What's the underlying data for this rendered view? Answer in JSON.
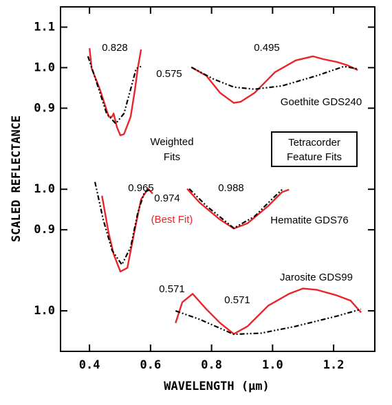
{
  "chart_data": {
    "type": "line",
    "xlabel": "WAVELENGTH (µm)",
    "ylabel": "SCALED REFLECTANCE",
    "xlim": [
      0.305,
      1.335
    ],
    "xticks": [
      0.4,
      0.6,
      0.8,
      {
        "value": 1.0,
        "label": "1.0"
      },
      1.2
    ],
    "ylim": [
      0.3,
      1.15
    ],
    "yticks": [
      1.1,
      {
        "value": 1.0,
        "label": "1.0"
      },
      0.9,
      {
        "value": 0.7,
        "label": "1.0"
      },
      {
        "value": 0.6,
        "label": "0.9"
      },
      {
        "value": 0.4,
        "label": "1.0"
      }
    ],
    "series": [
      {
        "color": "#e8262a",
        "dash": false,
        "x": [
          0.4,
          0.407,
          0.434,
          0.463,
          0.474,
          0.479,
          0.49,
          0.501,
          0.513,
          0.535,
          0.549,
          0.558,
          0.569
        ],
        "values": [
          1.048,
          0.998,
          0.947,
          0.879,
          0.879,
          0.887,
          0.853,
          0.833,
          0.836,
          0.879,
          0.947,
          0.998,
          1.045
        ]
      },
      {
        "color": "#000000",
        "dash": true,
        "x": [
          0.395,
          0.423,
          0.456,
          0.486,
          0.513,
          0.535,
          0.553,
          0.569
        ],
        "values": [
          1.028,
          0.964,
          0.887,
          0.862,
          0.887,
          0.947,
          0.998,
          1.003
        ]
      },
      {
        "color": "#e8262a",
        "dash": false,
        "x": [
          0.734,
          0.783,
          0.828,
          0.873,
          0.896,
          0.941,
          1.008,
          1.076,
          1.132,
          1.166,
          1.211,
          1.245,
          1.279
        ],
        "values": [
          1.001,
          0.98,
          0.938,
          0.913,
          0.916,
          0.938,
          0.989,
          1.018,
          1.028,
          1.021,
          1.014,
          1.006,
          0.994
        ]
      },
      {
        "color": "#000000",
        "dash": true,
        "x": [
          0.734,
          0.806,
          0.873,
          0.941,
          1.031,
          1.144,
          1.234,
          1.279
        ],
        "values": [
          1.001,
          0.972,
          0.952,
          0.947,
          0.955,
          0.98,
          1.003,
          0.997
        ]
      },
      {
        "color": "#e8262a",
        "dash": false,
        "x": [
          0.441,
          0.463,
          0.479,
          0.501,
          0.524,
          0.546,
          0.569,
          0.592,
          0.607
        ],
        "values": [
          0.684,
          0.591,
          0.54,
          0.497,
          0.506,
          0.591,
          0.675,
          0.701,
          0.689
        ]
      },
      {
        "color": "#000000",
        "dash": true,
        "x": [
          0.418,
          0.445,
          0.474,
          0.506,
          0.535,
          0.558,
          0.58,
          0.603
        ],
        "values": [
          0.718,
          0.625,
          0.549,
          0.514,
          0.557,
          0.642,
          0.693,
          0.701
        ]
      },
      {
        "color": "#e8262a",
        "dash": false,
        "x": [
          0.72,
          0.761,
          0.828,
          0.873,
          0.918,
          0.986,
          1.031,
          1.054
        ],
        "values": [
          0.701,
          0.667,
          0.625,
          0.603,
          0.616,
          0.659,
          0.693,
          0.699
        ]
      },
      {
        "color": "#000000",
        "dash": true,
        "x": [
          0.727,
          0.783,
          0.873,
          0.941,
          0.997,
          1.031
        ],
        "values": [
          0.701,
          0.659,
          0.604,
          0.633,
          0.675,
          0.699
        ]
      },
      {
        "color": "#e8262a",
        "dash": false,
        "x": [
          0.682,
          0.704,
          0.738,
          0.783,
          0.828,
          0.873,
          0.918,
          0.986,
          1.054,
          1.099,
          1.144,
          1.211,
          1.256,
          1.29
        ],
        "values": [
          0.37,
          0.421,
          0.442,
          0.404,
          0.37,
          0.343,
          0.362,
          0.413,
          0.442,
          0.455,
          0.452,
          0.438,
          0.425,
          0.396
        ]
      },
      {
        "color": "#000000",
        "dash": true,
        "x": [
          0.682,
          0.761,
          0.873,
          0.963,
          1.076,
          1.211,
          1.29
        ],
        "values": [
          0.4,
          0.379,
          0.342,
          0.345,
          0.362,
          0.387,
          0.404
        ]
      }
    ],
    "annotations": [
      "0.828",
      "0.495",
      "0.575",
      "Goethite GDS240",
      "Weighted",
      "Fits",
      "Tetracorder",
      "Feature Fits",
      "0.965",
      "0.974",
      "(Best Fit)",
      "0.988",
      "Hematite GDS76",
      "Jarosite GDS99",
      "0.571",
      "0.571"
    ]
  }
}
